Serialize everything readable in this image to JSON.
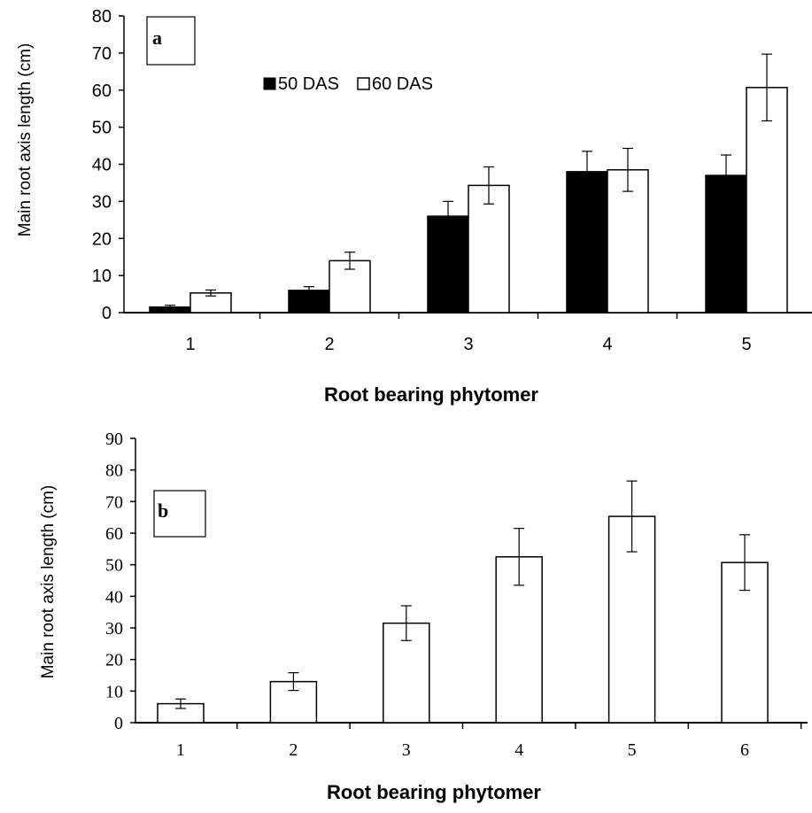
{
  "chart_data": [
    {
      "panel": "a",
      "type": "bar",
      "categories": [
        "1",
        "2",
        "3",
        "4",
        "5"
      ],
      "series": [
        {
          "name": "50 DAS",
          "values": [
            1.5,
            6,
            26,
            38,
            37
          ],
          "errors": [
            0.5,
            1,
            4,
            5.5,
            5.5
          ],
          "fill": "#000000"
        },
        {
          "name": "60 DAS",
          "values": [
            5.3,
            14,
            34.3,
            38.5,
            60.7
          ],
          "errors": [
            0.8,
            2.3,
            5,
            5.8,
            9
          ],
          "fill": "#ffffff"
        }
      ],
      "yticks": [
        "0",
        "10",
        "20",
        "30",
        "40",
        "50",
        "60",
        "70",
        "80"
      ],
      "ylim": [
        0,
        80
      ],
      "xlabel": "Root bearing phytomer",
      "ylabel": "Main root axis length (cm)",
      "legend": {
        "items": [
          "50 DAS",
          "60 DAS"
        ],
        "placement": "top-left"
      }
    },
    {
      "panel": "b",
      "type": "bar",
      "categories": [
        "1",
        "2",
        "3",
        "4",
        "5",
        "6"
      ],
      "series": [
        {
          "values": [
            6,
            13,
            31.5,
            52.5,
            65.3,
            50.7
          ],
          "errors": [
            1.5,
            2.8,
            5.5,
            9,
            11.2,
            8.8
          ],
          "fill": "#ffffff"
        }
      ],
      "yticks": [
        "0",
        "10",
        "20",
        "30",
        "40",
        "50",
        "60",
        "70",
        "80",
        "90"
      ],
      "ylim": [
        0,
        90
      ],
      "xlabel": "Root bearing phytomer",
      "ylabel": "Main root axis length (cm)"
    }
  ]
}
